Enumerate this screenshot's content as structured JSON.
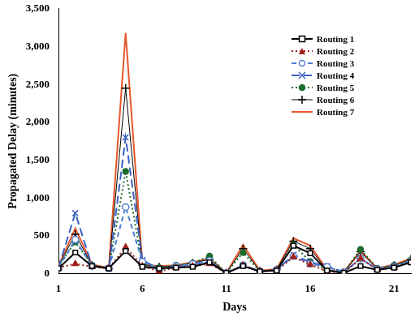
{
  "chart_data": {
    "type": "line",
    "x_label": "Days",
    "y_label": "Propagated Delay (minutes)",
    "x": [
      1,
      2,
      3,
      4,
      5,
      6,
      7,
      8,
      9,
      10,
      11,
      12,
      13,
      14,
      15,
      16,
      17,
      18,
      19,
      20,
      21,
      22
    ],
    "xlim": [
      1,
      22
    ],
    "xticks": [
      1,
      6,
      11,
      16,
      21
    ],
    "ylim": [
      0,
      3500
    ],
    "yticks": [
      0,
      500,
      1000,
      1500,
      2000,
      2500,
      3000,
      3500
    ],
    "grid": false,
    "legend": "upper right",
    "series": [
      {
        "name": "Routing 1",
        "color": "#000000",
        "marker": "square",
        "line_style": "solid",
        "values": [
          70,
          280,
          100,
          70,
          300,
          90,
          70,
          80,
          90,
          150,
          10,
          100,
          30,
          40,
          370,
          270,
          40,
          10,
          100,
          50,
          80,
          150
        ]
      },
      {
        "name": "Routing 2",
        "color": "#a0201c",
        "marker": "triangle",
        "line_style": "dotted",
        "values": [
          80,
          130,
          90,
          70,
          350,
          100,
          30,
          80,
          100,
          130,
          10,
          110,
          30,
          40,
          220,
          120,
          30,
          10,
          200,
          50,
          80,
          160
        ]
      },
      {
        "name": "Routing 3",
        "color": "#4f7fd0",
        "marker": "circle",
        "line_style": "dashed",
        "values": [
          80,
          450,
          100,
          70,
          880,
          160,
          60,
          100,
          130,
          170,
          10,
          110,
          30,
          50,
          230,
          130,
          90,
          20,
          200,
          60,
          90,
          160
        ]
      },
      {
        "name": "Routing 4",
        "color": "#3b5fc0",
        "marker": "x",
        "line_style": "longdash",
        "values": [
          80,
          800,
          100,
          70,
          1800,
          180,
          60,
          90,
          120,
          150,
          10,
          110,
          30,
          50,
          250,
          150,
          100,
          20,
          200,
          60,
          100,
          160
        ]
      },
      {
        "name": "Routing 5",
        "color": "#1e6b2e",
        "marker": "dot",
        "line_style": "dotted",
        "values": [
          100,
          420,
          110,
          70,
          1350,
          130,
          80,
          110,
          140,
          230,
          10,
          280,
          30,
          50,
          380,
          160,
          50,
          20,
          320,
          70,
          110,
          180
        ]
      },
      {
        "name": "Routing 6",
        "color": "#000000",
        "marker": "plus",
        "line_style": "solid",
        "values": [
          100,
          520,
          110,
          70,
          2450,
          110,
          90,
          100,
          140,
          190,
          10,
          330,
          35,
          55,
          430,
          330,
          45,
          15,
          290,
          60,
          110,
          190
        ]
      },
      {
        "name": "Routing 7",
        "color": "#e8572a",
        "marker": "none",
        "line_style": "solid",
        "values": [
          100,
          600,
          120,
          80,
          3180,
          120,
          100,
          110,
          150,
          200,
          10,
          380,
          40,
          60,
          470,
          370,
          50,
          20,
          300,
          70,
          120,
          200
        ]
      }
    ]
  }
}
